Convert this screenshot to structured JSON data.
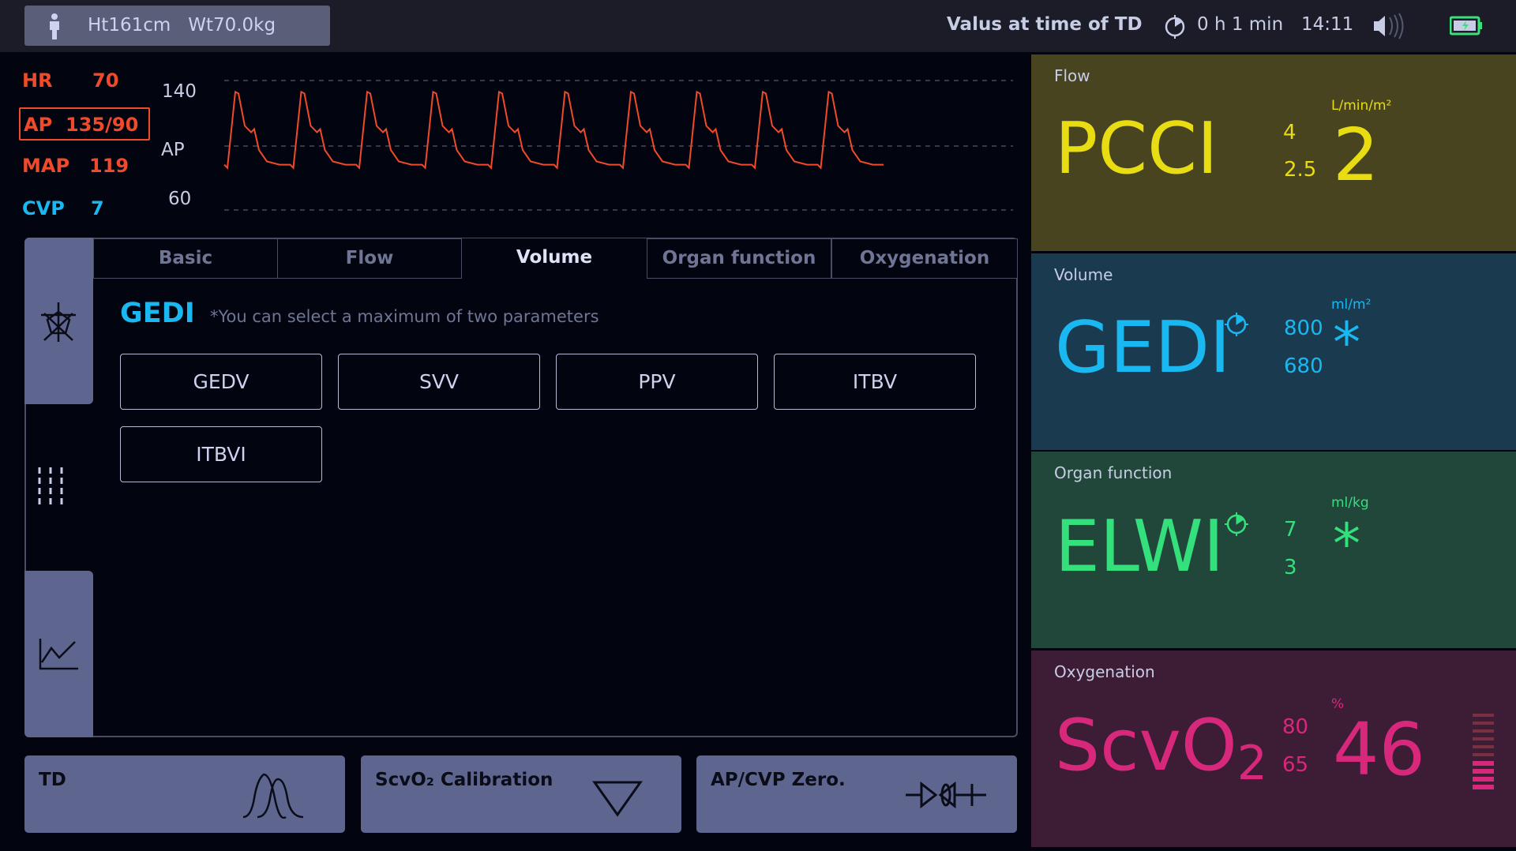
{
  "header": {
    "patient": "Ht161cm   Wt70.0kg",
    "td_label": "Valus at time of TD",
    "elapsed": "0 h 1 min",
    "time": "14:11"
  },
  "vitals": {
    "hr_label": "HR",
    "hr": "70",
    "ap_label": "AP",
    "ap": "135/90",
    "map_label": "MAP",
    "map": "119",
    "cvp_label": "CVP",
    "cvp": "7"
  },
  "waveform": {
    "label": "AP",
    "scale_top": "140",
    "scale_bottom": "60",
    "color": "#f04a2a"
  },
  "tabs": [
    {
      "label": "Basic"
    },
    {
      "label": "Flow"
    },
    {
      "label": "Volume",
      "active": true
    },
    {
      "label": "Organ function"
    },
    {
      "label": "Oxygenation"
    }
  ],
  "selection": {
    "title": "GEDI",
    "hint": "*You can select a maximum of two parameters",
    "options": [
      "GEDV",
      "SVV",
      "PPV",
      "ITBV",
      "ITBVI"
    ]
  },
  "actions": {
    "td": "TD",
    "scvo2": "ScvO₂ Calibration",
    "zero": "AP/CVP Zero."
  },
  "panels": {
    "flow": {
      "category": "Flow",
      "param": "PCCI",
      "upper": "4",
      "lower": "2.5",
      "unit": "L/min/m²",
      "value": "2",
      "color": "#e8dc12",
      "bg": "#484420"
    },
    "volume": {
      "category": "Volume",
      "param": "GEDI",
      "upper": "800",
      "lower": "680",
      "unit": "ml/m²",
      "value": "*",
      "color": "#1ab8f0",
      "bg": "#1a3a50"
    },
    "organ": {
      "category": "Organ function",
      "param": "ELWI",
      "upper": "7",
      "lower": "3",
      "unit": "ml/kg",
      "value": "*",
      "color": "#34e07c",
      "bg": "#21463a"
    },
    "oxygenation": {
      "category": "Oxygenation",
      "param": "ScvO",
      "param_sub": "2",
      "upper": "80",
      "lower": "65",
      "unit": "%",
      "value": "46",
      "color": "#d8287c",
      "bg": "#3d1c36",
      "signal_quality_bars": 4,
      "signal_quality_max": 10
    }
  }
}
